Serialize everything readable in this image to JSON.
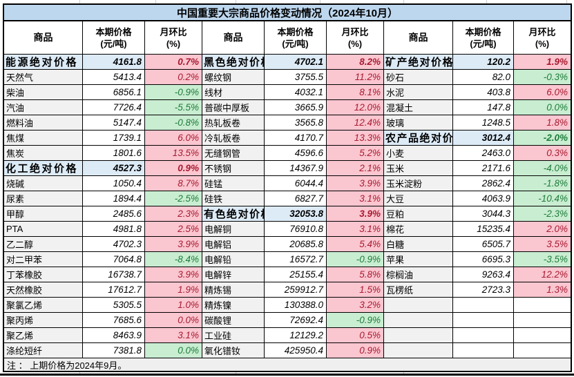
{
  "title": "中国重要大宗商品价格变动情况（2024年10月）",
  "note": "注 ： 上期价格为2024年9月。",
  "header": {
    "commodity": "商品",
    "price_line1": "本期价格",
    "price_line2": "(元/吨)",
    "mom_line1": "月环比",
    "mom_line2": "(%)"
  },
  "colors": {
    "title_bg": "#BDD7EE",
    "section_bg": "#DDEBF7",
    "up_bg": "#FAC6D0",
    "up_text": "#A81A30",
    "down_bg": "#C9EDD1",
    "down_text": "#1E7C3A"
  },
  "chart_data": {
    "type": "table",
    "title": "中国重要大宗商品价格变动情况（2024年10月）",
    "columns": [
      "商品",
      "本期价格(元/吨)",
      "月环比(%)"
    ],
    "groups": [
      {
        "rows": [
          {
            "name": "能源绝对价格",
            "price": "4161.8",
            "mom": "0.7%",
            "trend": "up",
            "section": true
          },
          {
            "name": "天然气",
            "price": "5413.4",
            "mom": "0.2%",
            "trend": "up"
          },
          {
            "name": "柴油",
            "price": "6856.1",
            "mom": "-0.9%",
            "trend": "down"
          },
          {
            "name": "汽油",
            "price": "7726.4",
            "mom": "-5.5%",
            "trend": "down"
          },
          {
            "name": "燃料油",
            "price": "5147.4",
            "mom": "-0.8%",
            "trend": "down"
          },
          {
            "name": "焦煤",
            "price": "1739.1",
            "mom": "6.0%",
            "trend": "up"
          },
          {
            "name": "焦炭",
            "price": "1801.6",
            "mom": "13.5%",
            "trend": "up"
          },
          {
            "name": "化工绝对价格",
            "price": "4527.3",
            "mom": "0.9%",
            "trend": "up",
            "section": true
          },
          {
            "name": "烧碱",
            "price": "1050.4",
            "mom": "8.7%",
            "trend": "up"
          },
          {
            "name": "尿素",
            "price": "1894.4",
            "mom": "-2.5%",
            "trend": "down"
          },
          {
            "name": "甲醇",
            "price": "2485.6",
            "mom": "2.3%",
            "trend": "up"
          },
          {
            "name": "PTA",
            "price": "4981.8",
            "mom": "2.5%",
            "trend": "up"
          },
          {
            "name": "乙二醇",
            "price": "4702.3",
            "mom": "3.9%",
            "trend": "up"
          },
          {
            "name": "对二甲苯",
            "price": "7064.8",
            "mom": "-8.4%",
            "trend": "down"
          },
          {
            "name": "丁苯橡胶",
            "price": "16738.7",
            "mom": "3.9%",
            "trend": "up"
          },
          {
            "name": "天然橡胶",
            "price": "17612.7",
            "mom": "1.9%",
            "trend": "up"
          },
          {
            "name": "聚氯乙烯",
            "price": "5305.5",
            "mom": "1.0%",
            "trend": "up"
          },
          {
            "name": "聚丙烯",
            "price": "7685.6",
            "mom": "0.0%",
            "trend": "up"
          },
          {
            "name": "聚乙烯",
            "price": "8463.9",
            "mom": "3.1%",
            "trend": "up"
          },
          {
            "name": "涤纶短纤",
            "price": "7381.8",
            "mom": "0.0%",
            "trend": "down"
          }
        ]
      },
      {
        "rows": [
          {
            "name": "黑色绝对价格",
            "price": "4702.1",
            "mom": "8.2%",
            "trend": "up",
            "section": true
          },
          {
            "name": "螺纹钢",
            "price": "3755.5",
            "mom": "11.2%",
            "trend": "up"
          },
          {
            "name": "线材",
            "price": "4032.1",
            "mom": "8.1%",
            "trend": "up"
          },
          {
            "name": "普碳中厚板",
            "price": "3665.9",
            "mom": "12.0%",
            "trend": "up"
          },
          {
            "name": "热轧板卷",
            "price": "3565.8",
            "mom": "12.4%",
            "trend": "up"
          },
          {
            "name": "冷轧板卷",
            "price": "4170.7",
            "mom": "13.3%",
            "trend": "up"
          },
          {
            "name": "无缝钢管",
            "price": "4596.6",
            "mom": "5.2%",
            "trend": "up"
          },
          {
            "name": "不锈钢",
            "price": "14367.9",
            "mom": "2.1%",
            "trend": "up"
          },
          {
            "name": "硅锰",
            "price": "6044.4",
            "mom": "3.9%",
            "trend": "up"
          },
          {
            "name": "硅铁",
            "price": "6827.7",
            "mom": "3.1%",
            "trend": "up"
          },
          {
            "name": "有色绝对价格",
            "price": "32053.8",
            "mom": "3.9%",
            "trend": "up",
            "section": true
          },
          {
            "name": "电解铜",
            "price": "76910.8",
            "mom": "3.1%",
            "trend": "up"
          },
          {
            "name": "电解铝",
            "price": "20685.8",
            "mom": "5.4%",
            "trend": "up"
          },
          {
            "name": "电解铅",
            "price": "16572.7",
            "mom": "-0.9%",
            "trend": "down"
          },
          {
            "name": "电解锌",
            "price": "25155.4",
            "mom": "5.8%",
            "trend": "up"
          },
          {
            "name": "精炼锡",
            "price": "259912.7",
            "mom": "1.5%",
            "trend": "up"
          },
          {
            "name": "精炼镍",
            "price": "130388.0",
            "mom": "3.2%",
            "trend": "up"
          },
          {
            "name": "碳酸锂",
            "price": "72692.4",
            "mom": "-0.9%",
            "trend": "down"
          },
          {
            "name": "工业硅",
            "price": "12129.2",
            "mom": "0.5%",
            "trend": "up"
          },
          {
            "name": "氧化镨钕",
            "price": "425950.4",
            "mom": "0.9%",
            "trend": "up"
          }
        ]
      },
      {
        "rows": [
          {
            "name": "矿产绝对价格",
            "price": "120.2",
            "mom": "1.9%",
            "trend": "up",
            "section": true
          },
          {
            "name": "砂石",
            "price": "82.0",
            "mom": "-0.3%",
            "trend": "down"
          },
          {
            "name": "水泥",
            "price": "403.8",
            "mom": "6.0%",
            "trend": "up"
          },
          {
            "name": "混凝土",
            "price": "147.8",
            "mom": "0.0%",
            "trend": "down"
          },
          {
            "name": "玻璃",
            "price": "1248.5",
            "mom": "1.8%",
            "trend": "up"
          },
          {
            "name": "农产品绝对价格",
            "price": "3012.4",
            "mom": "-2.0%",
            "trend": "down",
            "section": true
          },
          {
            "name": "小麦",
            "price": "2463.0",
            "mom": "0.3%",
            "trend": "up"
          },
          {
            "name": "玉米",
            "price": "2171.6",
            "mom": "-4.0%",
            "trend": "down"
          },
          {
            "name": "玉米淀粉",
            "price": "2862.4",
            "mom": "-1.8%",
            "trend": "down"
          },
          {
            "name": "大豆",
            "price": "4063.9",
            "mom": "-10.4%",
            "trend": "down"
          },
          {
            "name": "豆粕",
            "price": "3044.3",
            "mom": "-2.3%",
            "trend": "down"
          },
          {
            "name": "棉花",
            "price": "15235.4",
            "mom": "2.0%",
            "trend": "up"
          },
          {
            "name": "白糖",
            "price": "6505.7",
            "mom": "3.5%",
            "trend": "up"
          },
          {
            "name": "苹果",
            "price": "6695.3",
            "mom": "-3.5%",
            "trend": "down"
          },
          {
            "name": "棕榈油",
            "price": "9263.4",
            "mom": "12.2%",
            "trend": "up"
          },
          {
            "name": "瓦楞纸",
            "price": "2723.3",
            "mom": "1.3%",
            "trend": "up"
          },
          {
            "name": "",
            "price": "",
            "mom": "",
            "trend": null,
            "empty": true
          },
          {
            "name": "",
            "price": "",
            "mom": "",
            "trend": null,
            "empty": true
          },
          {
            "name": "",
            "price": "",
            "mom": "",
            "trend": null,
            "empty": true
          },
          {
            "name": "",
            "price": "",
            "mom": "",
            "trend": null,
            "empty": true
          }
        ]
      }
    ]
  }
}
